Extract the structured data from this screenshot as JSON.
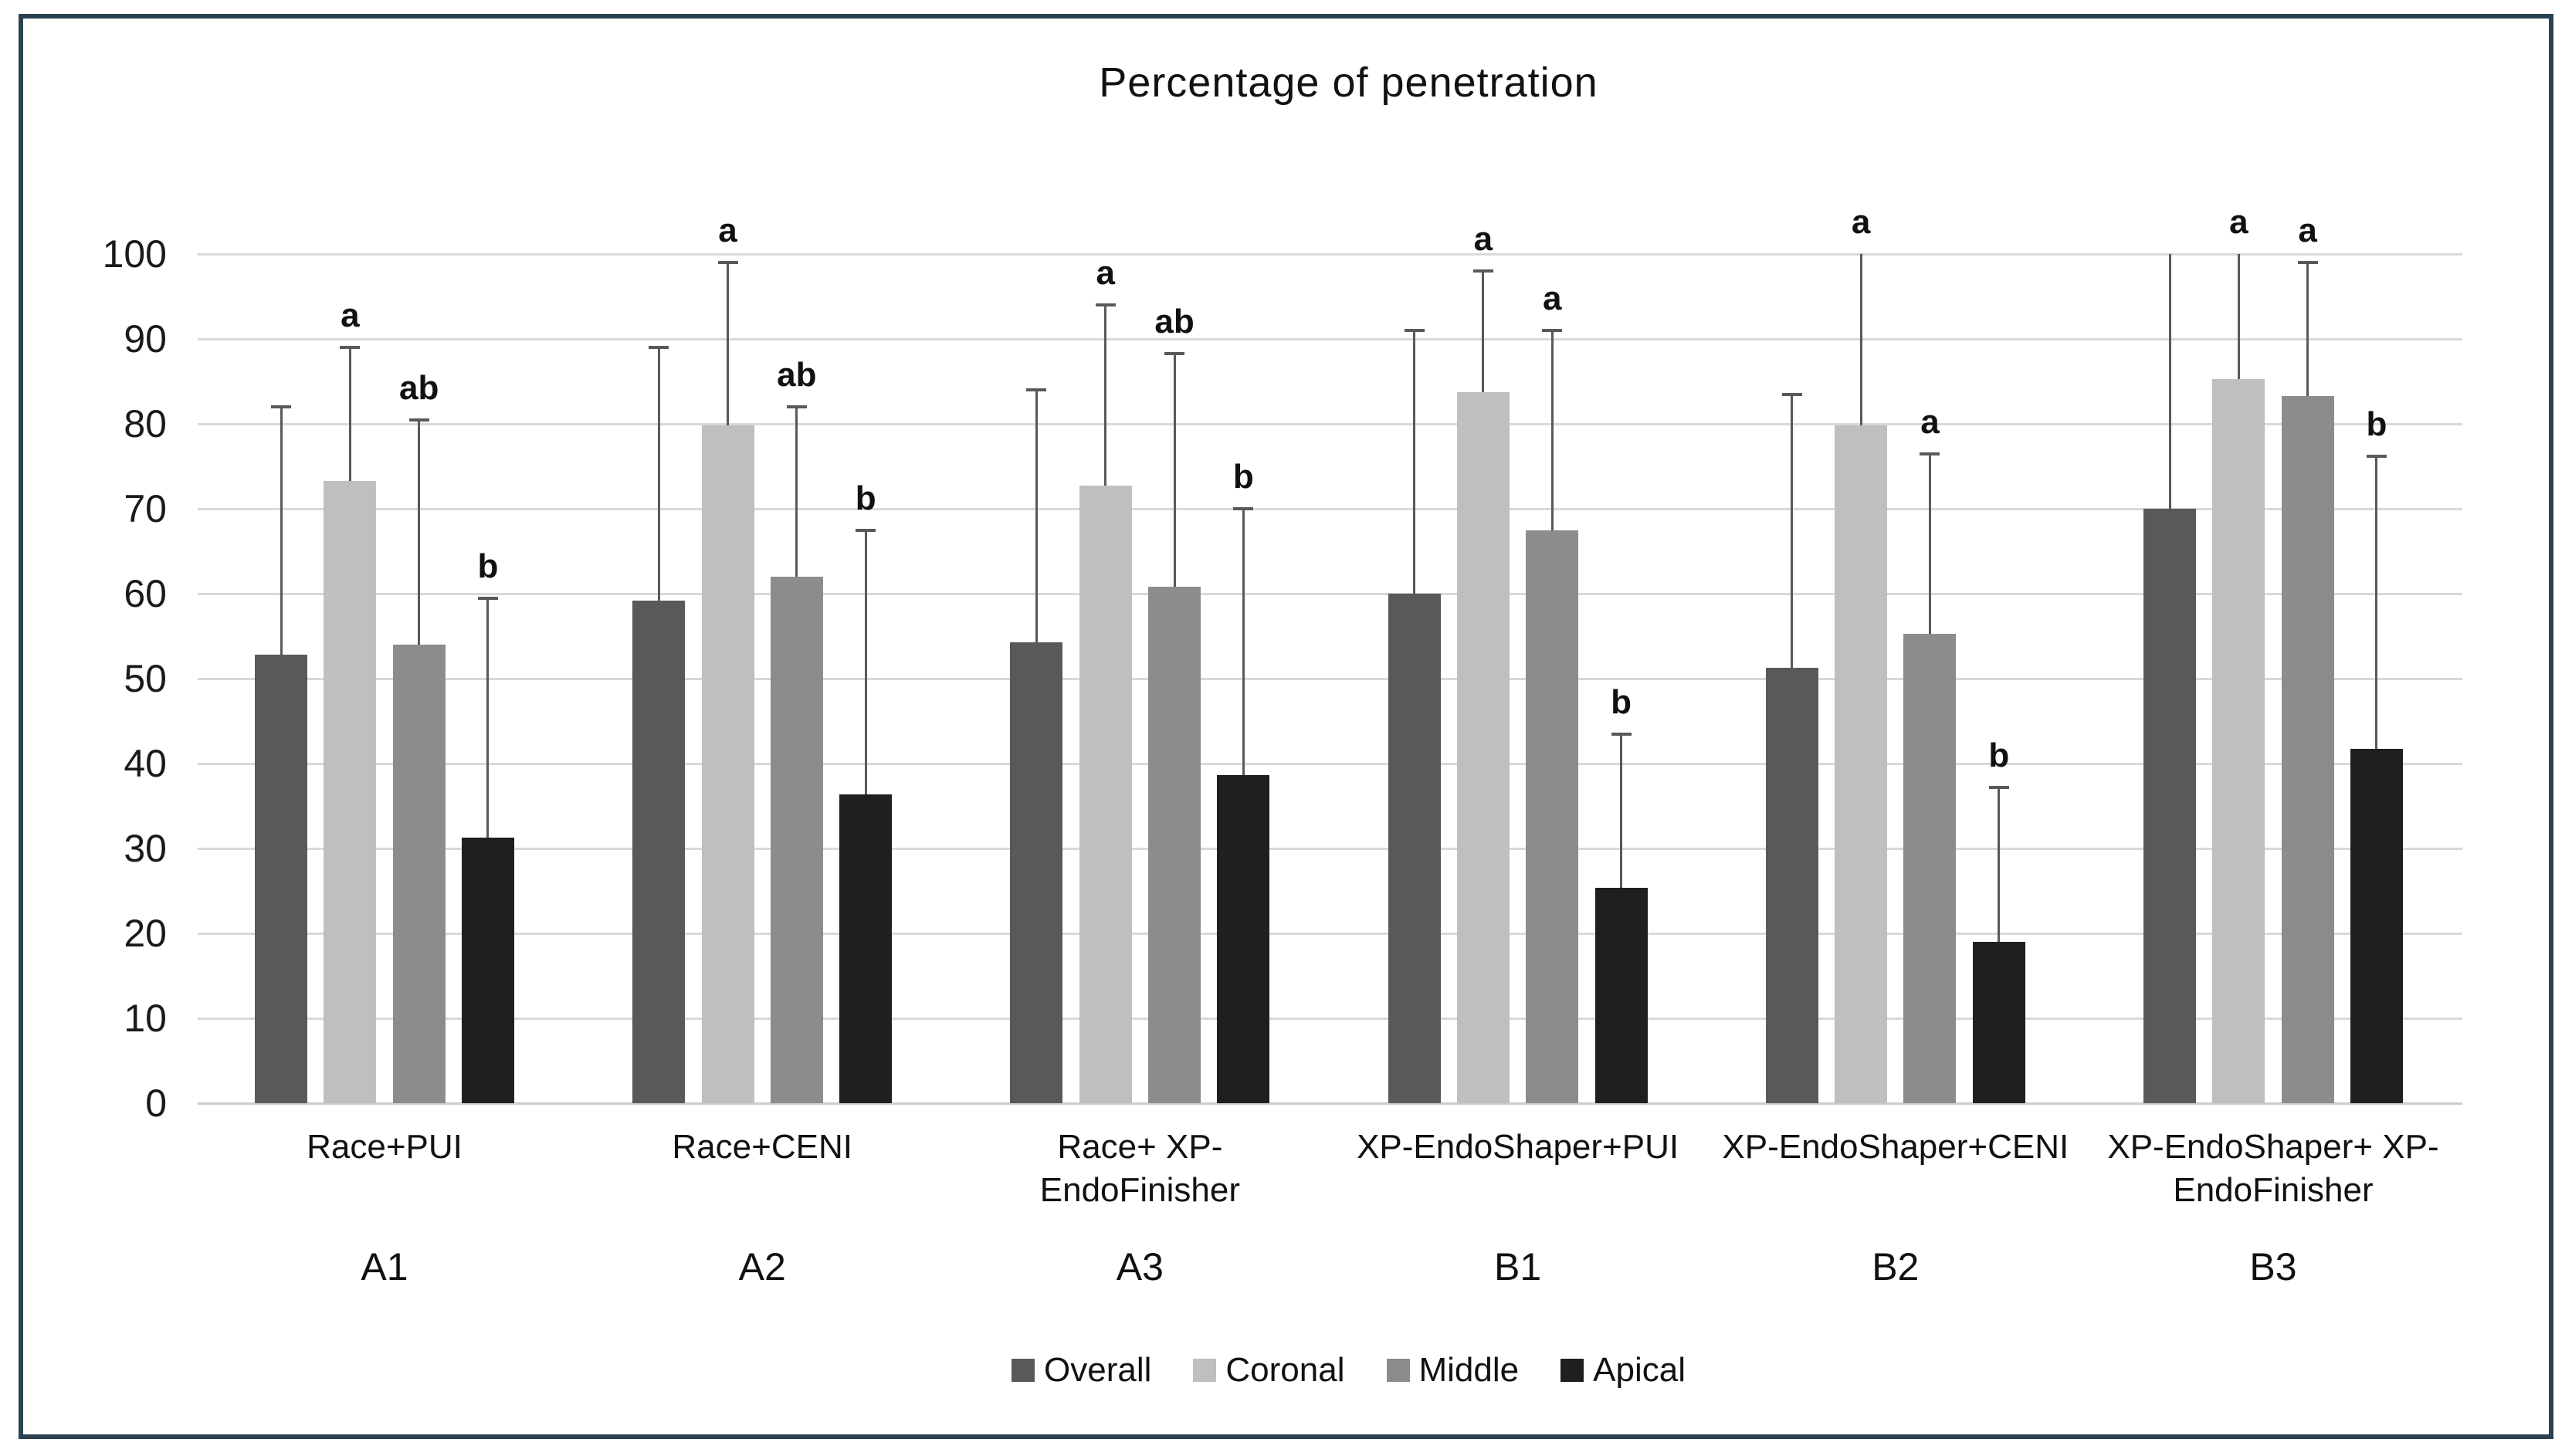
{
  "figure": {
    "title": "Percentage of penetration"
  },
  "chart_data": {
    "type": "bar",
    "title": "Percentage of penetration",
    "xlabel": "",
    "ylabel": "",
    "ylim": [
      0,
      100
    ],
    "yticks": [
      100,
      90,
      80,
      70,
      60,
      50,
      40,
      30,
      20,
      10,
      0
    ],
    "grid": true,
    "legend_position": "bottom",
    "series_names": [
      "Overall",
      "Coronal",
      "Middle",
      "Apical"
    ],
    "series_colors": {
      "Overall": "#595959",
      "Coronal": "#bfbfbf",
      "Middle": "#8c8c8c",
      "Apical": "#1f1f1f"
    },
    "error_bar_color": "#595959",
    "gridline_color": "#d9d9d9",
    "frame_border_color": "#2b4150",
    "groups": [
      {
        "id": "A1",
        "label": "Race+PUI",
        "values": [
          52.8,
          73.3,
          54.0,
          31.3
        ],
        "error_top": [
          82.0,
          89.0,
          80.5,
          59.5
        ],
        "letters": [
          "",
          "a",
          "ab",
          "b"
        ]
      },
      {
        "id": "A2",
        "label": "Race+CENI",
        "values": [
          59.2,
          79.8,
          62.0,
          36.4
        ],
        "error_top": [
          89.0,
          99.0,
          82.0,
          67.5
        ],
        "letters": [
          "",
          "a",
          "ab",
          "b"
        ]
      },
      {
        "id": "A3",
        "label": "Race+ XP-\nEndoFinisher",
        "values": [
          54.3,
          72.7,
          60.8,
          38.6
        ],
        "error_top": [
          84.0,
          94.0,
          88.3,
          70.0
        ],
        "letters": [
          "",
          "a",
          "ab",
          "b"
        ]
      },
      {
        "id": "B1",
        "label": "XP-EndoShaper+PUI",
        "values": [
          60.0,
          83.7,
          67.5,
          25.4
        ],
        "error_top": [
          91.0,
          98.0,
          91.0,
          43.5
        ],
        "letters": [
          "",
          "a",
          "a",
          "b"
        ]
      },
      {
        "id": "B2",
        "label": "XP-EndoShaper+CENI",
        "values": [
          51.3,
          79.8,
          55.3,
          19.0
        ],
        "error_top": [
          83.5,
          100.0,
          76.5,
          37.2
        ],
        "letters": [
          "",
          "a",
          "a",
          "b"
        ]
      },
      {
        "id": "B3",
        "label": "XP-EndoShaper+ XP-\nEndoFinisher",
        "values": [
          70.0,
          85.3,
          83.3,
          41.7
        ],
        "error_top": [
          100.0,
          100.0,
          99.0,
          76.2
        ],
        "letters": [
          "",
          "a",
          "a",
          "b"
        ]
      }
    ]
  }
}
